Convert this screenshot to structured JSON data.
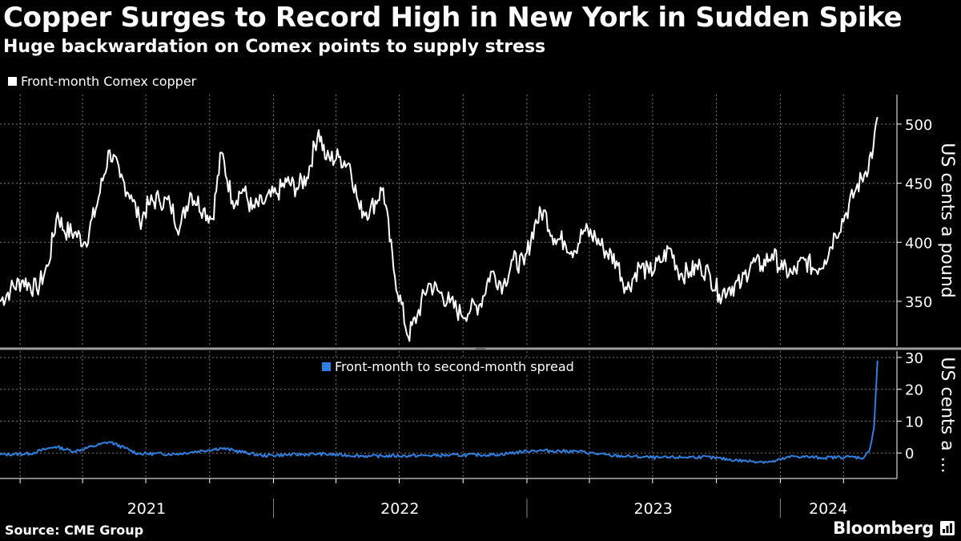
{
  "header": {
    "title": "Copper Surges to Record High in New York in Sudden Spike",
    "subtitle": "Huge backwardation on Comex points to supply stress"
  },
  "footer": {
    "source": "Source: CME Group",
    "brand": "Bloomberg"
  },
  "colors": {
    "background": "#000000",
    "price_line": "#ffffff",
    "spread_line": "#2f7fe0",
    "grid": "#7a7a7a"
  },
  "chart_data": [
    {
      "type": "line",
      "panel": "top",
      "series": [
        {
          "name": "Front-month Comex copper",
          "points": [
            [
              "2020-12-03",
              350
            ],
            [
              "2020-12-18",
              360
            ],
            [
              "2021-01-05",
              368
            ],
            [
              "2021-01-25",
              360
            ],
            [
              "2021-02-10",
              380
            ],
            [
              "2021-02-24",
              425
            ],
            [
              "2021-03-05",
              410
            ],
            [
              "2021-03-20",
              408
            ],
            [
              "2021-04-05",
              400
            ],
            [
              "2021-04-20",
              428
            ],
            [
              "2021-05-10",
              478
            ],
            [
              "2021-05-25",
              455
            ],
            [
              "2021-06-10",
              440
            ],
            [
              "2021-06-22",
              418
            ],
            [
              "2021-07-05",
              432
            ],
            [
              "2021-07-20",
              437
            ],
            [
              "2021-08-05",
              432
            ],
            [
              "2021-08-19",
              412
            ],
            [
              "2021-09-03",
              442
            ],
            [
              "2021-09-22",
              428
            ],
            [
              "2021-10-05",
              420
            ],
            [
              "2021-10-18",
              476
            ],
            [
              "2021-11-03",
              435
            ],
            [
              "2021-11-18",
              445
            ],
            [
              "2021-12-01",
              428
            ],
            [
              "2021-12-16",
              433
            ],
            [
              "2022-01-05",
              441
            ],
            [
              "2022-01-20",
              451
            ],
            [
              "2022-02-03",
              446
            ],
            [
              "2022-02-18",
              455
            ],
            [
              "2022-03-07",
              495
            ],
            [
              "2022-03-18",
              470
            ],
            [
              "2022-04-05",
              472
            ],
            [
              "2022-04-21",
              466
            ],
            [
              "2022-05-05",
              428
            ],
            [
              "2022-05-20",
              427
            ],
            [
              "2022-06-08",
              446
            ],
            [
              "2022-06-23",
              377
            ],
            [
              "2022-07-14",
              320
            ],
            [
              "2022-07-27",
              338
            ],
            [
              "2022-08-12",
              365
            ],
            [
              "2022-08-29",
              357
            ],
            [
              "2022-09-12",
              349
            ],
            [
              "2022-09-28",
              339
            ],
            [
              "2022-10-12",
              343
            ],
            [
              "2022-10-26",
              348
            ],
            [
              "2022-11-10",
              375
            ],
            [
              "2022-11-28",
              364
            ],
            [
              "2022-12-12",
              385
            ],
            [
              "2022-12-28",
              381
            ],
            [
              "2023-01-12",
              415
            ],
            [
              "2023-01-25",
              427
            ],
            [
              "2023-02-10",
              403
            ],
            [
              "2023-02-24",
              401
            ],
            [
              "2023-03-10",
              393
            ],
            [
              "2023-03-24",
              410
            ],
            [
              "2023-04-10",
              404
            ],
            [
              "2023-04-21",
              395
            ],
            [
              "2023-05-10",
              384
            ],
            [
              "2023-05-25",
              360
            ],
            [
              "2023-06-12",
              380
            ],
            [
              "2023-06-26",
              374
            ],
            [
              "2023-07-12",
              383
            ],
            [
              "2023-07-26",
              395
            ],
            [
              "2023-08-10",
              373
            ],
            [
              "2023-08-24",
              375
            ],
            [
              "2023-09-08",
              380
            ],
            [
              "2023-09-22",
              372
            ],
            [
              "2023-10-05",
              356
            ],
            [
              "2023-10-20",
              362
            ],
            [
              "2023-11-06",
              365
            ],
            [
              "2023-11-20",
              383
            ],
            [
              "2023-12-05",
              380
            ],
            [
              "2023-12-20",
              390
            ],
            [
              "2024-01-05",
              377
            ],
            [
              "2024-01-19",
              373
            ],
            [
              "2024-02-05",
              385
            ],
            [
              "2024-02-20",
              377
            ],
            [
              "2024-03-05",
              385
            ],
            [
              "2024-03-20",
              407
            ],
            [
              "2024-04-05",
              425
            ],
            [
              "2024-04-19",
              445
            ],
            [
              "2024-05-03",
              460
            ],
            [
              "2024-05-14",
              480
            ],
            [
              "2024-05-20",
              506
            ]
          ]
        }
      ],
      "xlim": [
        "2020-12-03",
        "2024-06-17"
      ],
      "ylim": [
        312,
        525
      ],
      "yticks": [
        350,
        400,
        450,
        500
      ],
      "ylabel": "US cents a pound",
      "grid": true
    },
    {
      "type": "line",
      "panel": "bottom",
      "series": [
        {
          "name": "Front-month to second-month spread",
          "points": [
            [
              "2020-12-03",
              -0.5
            ],
            [
              "2021-01-15",
              -0.2
            ],
            [
              "2021-02-20",
              2.0
            ],
            [
              "2021-03-20",
              0.5
            ],
            [
              "2021-05-10",
              3.5
            ],
            [
              "2021-06-20",
              -0.2
            ],
            [
              "2021-08-15",
              -0.3
            ],
            [
              "2021-10-18",
              1.5
            ],
            [
              "2021-12-15",
              -0.8
            ],
            [
              "2022-03-07",
              -0.3
            ],
            [
              "2022-05-20",
              -1.0
            ],
            [
              "2022-08-10",
              -0.8
            ],
            [
              "2022-11-20",
              -0.5
            ],
            [
              "2023-01-10",
              0.8
            ],
            [
              "2023-03-15",
              0.5
            ],
            [
              "2023-05-01",
              -0.8
            ],
            [
              "2023-07-10",
              -1.5
            ],
            [
              "2023-09-10",
              -1.2
            ],
            [
              "2023-11-10",
              -2.5
            ],
            [
              "2023-12-20",
              -2.8
            ],
            [
              "2024-01-20",
              -1.0
            ],
            [
              "2024-03-01",
              -1.5
            ],
            [
              "2024-04-10",
              -1.2
            ],
            [
              "2024-04-30",
              -1.5
            ],
            [
              "2024-05-08",
              0.5
            ],
            [
              "2024-05-15",
              8.0
            ],
            [
              "2024-05-20",
              29.0
            ]
          ]
        }
      ],
      "xlim": [
        "2020-12-03",
        "2024-06-17"
      ],
      "ylim": [
        -8,
        32
      ],
      "yticks": [
        0,
        10,
        20,
        30
      ],
      "ylabel": "US cents a ...",
      "grid": true
    }
  ],
  "x_axis": {
    "year_labels": [
      {
        "label": "2021",
        "at": "2021-07-02"
      },
      {
        "label": "2022",
        "at": "2022-07-02"
      },
      {
        "label": "2023",
        "at": "2023-07-02"
      },
      {
        "label": "2024",
        "at": "2024-03-10"
      }
    ],
    "year_boundaries": [
      "2022-01-01",
      "2023-01-01",
      "2024-01-01"
    ],
    "quarter_gridlines": [
      "2021-01-01",
      "2021-04-01",
      "2021-07-01",
      "2021-10-01",
      "2022-01-01",
      "2022-04-01",
      "2022-07-01",
      "2022-10-01",
      "2023-01-01",
      "2023-04-01",
      "2023-07-01",
      "2023-10-01",
      "2024-01-01",
      "2024-04-01"
    ]
  }
}
